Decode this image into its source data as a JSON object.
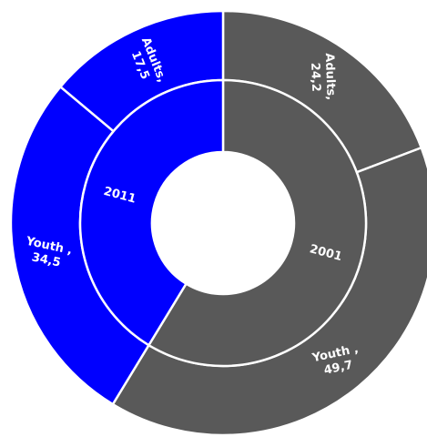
{
  "chart_data": {
    "type": "sunburst",
    "inner_ring": [
      {
        "name": "2011",
        "value": 52.0,
        "color": "#0000ff"
      },
      {
        "name": "2001",
        "value": 73.9,
        "color": "#595959"
      }
    ],
    "outer_ring": [
      {
        "parent": "2011",
        "name": "Adults",
        "value": 17.5,
        "line1": "Adults,",
        "line2": "17,5",
        "color": "#0000ff"
      },
      {
        "parent": "2011",
        "name": "Youth",
        "value": 34.5,
        "line1": "Youth ,",
        "line2": "34,5",
        "color": "#0000ff"
      },
      {
        "parent": "2001",
        "name": "Adults",
        "value": 24.2,
        "line1": "Adults,",
        "line2": "24,2",
        "color": "#595959"
      },
      {
        "parent": "2001",
        "name": "Youth",
        "value": 49.7,
        "line1": "Youth ,",
        "line2": "49,7",
        "color": "#595959"
      }
    ],
    "ring_order": "2011 counter-clockwise from top, 2001 clockwise from top"
  }
}
